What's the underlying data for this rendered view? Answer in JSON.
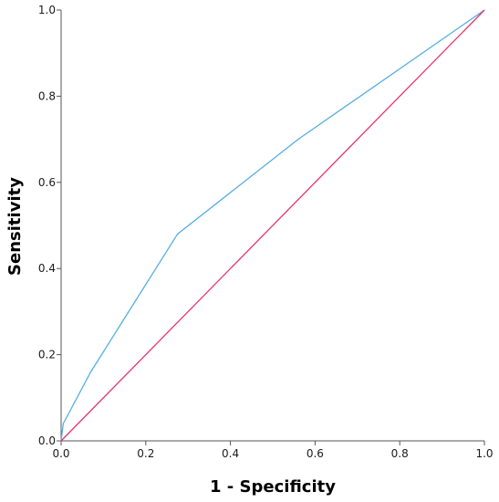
{
  "chart_data": {
    "type": "line",
    "title": "",
    "xlabel": "1 - Specificity",
    "ylabel": "Sensitivity",
    "xlim": [
      0,
      1
    ],
    "ylim": [
      0,
      1
    ],
    "grid": false,
    "legend": "none",
    "xticks": [
      "0.0",
      "0.2",
      "0.4",
      "0.6",
      "0.8",
      "1.0"
    ],
    "yticks": [
      "0.0",
      "0.2",
      "0.4",
      "0.6",
      "0.8",
      "1.0"
    ],
    "series": [
      {
        "color": "#56aee0",
        "x": [
          0.0,
          0.005,
          0.07,
          0.275,
          0.56,
          1.0
        ],
        "y": [
          0.0,
          0.04,
          0.16,
          0.48,
          0.7,
          1.0
        ]
      },
      {
        "color": "#e8336b",
        "x": [
          0.0,
          1.0
        ],
        "y": [
          0.0,
          1.0
        ]
      }
    ]
  }
}
